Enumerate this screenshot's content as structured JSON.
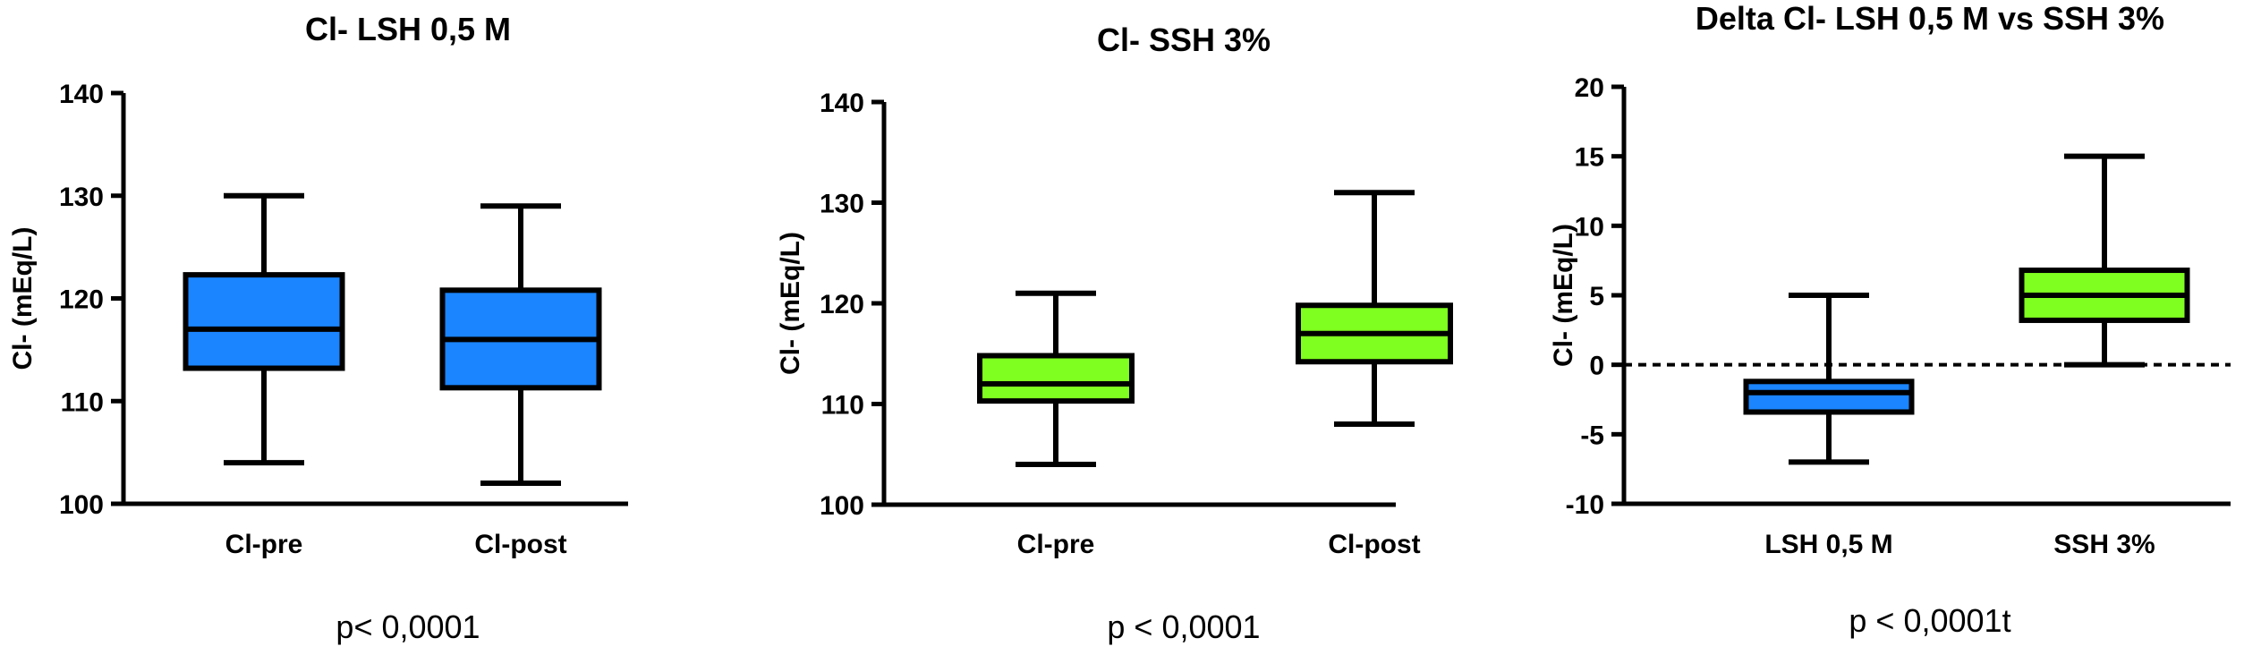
{
  "chart_data": [
    {
      "type": "box",
      "title": "Cl- LSH 0,5 M",
      "ylabel": "Cl- (mEq/L)",
      "xlabel": "",
      "ylim": [
        100,
        140
      ],
      "yticks": [
        100,
        110,
        120,
        130,
        140
      ],
      "categories": [
        "Cl-pre",
        "Cl-post"
      ],
      "boxes": [
        {
          "category": "Cl-pre",
          "min": 104,
          "q1": 113.2,
          "median": 117,
          "q3": 122.3,
          "max": 130,
          "color": "#1A85FF"
        },
        {
          "category": "Cl-post",
          "min": 102,
          "q1": 111.3,
          "median": 116,
          "q3": 120.8,
          "max": 129,
          "color": "#1A85FF"
        }
      ],
      "reference_line": null,
      "annotation": "p< 0,0001"
    },
    {
      "type": "box",
      "title": "Cl- SSH 3%",
      "ylabel": "Cl- (mEq/L)",
      "xlabel": "",
      "ylim": [
        100,
        140
      ],
      "yticks": [
        100,
        110,
        120,
        130,
        140
      ],
      "categories": [
        "Cl-pre",
        "Cl-post"
      ],
      "boxes": [
        {
          "category": "Cl-pre",
          "min": 104,
          "q1": 110.3,
          "median": 112,
          "q3": 114.8,
          "max": 121,
          "color": "#7FFF1F"
        },
        {
          "category": "Cl-post",
          "min": 108,
          "q1": 114.2,
          "median": 117,
          "q3": 119.8,
          "max": 131,
          "color": "#7FFF1F"
        }
      ],
      "reference_line": null,
      "annotation": "p < 0,0001"
    },
    {
      "type": "box",
      "title": "Delta Cl- LSH 0,5 M vs SSH 3%",
      "ylabel": "Cl- (mEq/L)",
      "xlabel": "",
      "ylim": [
        -10,
        20
      ],
      "yticks": [
        -10,
        -5,
        0,
        5,
        10,
        15,
        20
      ],
      "categories": [
        "LSH 0,5 M",
        "SSH 3%"
      ],
      "boxes": [
        {
          "category": "LSH 0,5 M",
          "min": -7,
          "q1": -3.4,
          "median": -2,
          "q3": -1.2,
          "max": 5,
          "color": "#1A85FF"
        },
        {
          "category": "SSH 3%",
          "min": 0,
          "q1": 3.2,
          "median": 5,
          "q3": 6.8,
          "max": 15,
          "color": "#7FFF1F"
        }
      ],
      "reference_line": {
        "y": 0,
        "style": "dotted"
      },
      "annotation": "p < 0,0001t"
    }
  ]
}
